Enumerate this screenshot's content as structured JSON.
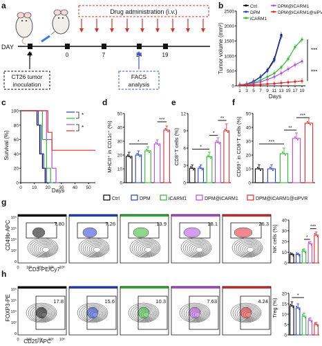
{
  "panel_letters": {
    "a": "a",
    "b": "b",
    "c": "c",
    "d": "d",
    "e": "e",
    "f": "f",
    "g": "g",
    "h": "h"
  },
  "colors": {
    "ctrl": "#000000",
    "dpm": "#1f3fd6",
    "icarm1": "#2db82d",
    "dpm_icarm1": "#b44be0",
    "dpm_icarm1_sipvr": "#e02a2a",
    "drug_box": "#d9302a",
    "facs_box": "#3e55d9"
  },
  "panel_a": {
    "drug_label": "Drug administration (i.v.)",
    "day_label": "DAY",
    "days": [
      "-7",
      "0",
      "7",
      "14",
      "19"
    ],
    "inoculation_label": [
      "CT26 tumor",
      "inoculation"
    ],
    "facs_label": [
      "FACS",
      "analysis"
    ]
  },
  "legend": [
    "Ctrl",
    "DPM",
    "iCARM1",
    "DPM@iCARM1",
    "DPM@iCARM1@siPVR"
  ],
  "chart_data": [
    {
      "panel": "b",
      "type": "line",
      "xlabel": "Days",
      "ylabel": "Tumor volume (mm³)",
      "x": [
        1,
        3,
        5,
        7,
        9,
        11,
        13,
        15,
        17,
        19
      ],
      "xticks": [
        "1",
        "3",
        "5",
        "7",
        "9",
        "11",
        "13",
        "15",
        "17",
        "19"
      ],
      "yticks": [
        "0",
        "500",
        "1000",
        "1500",
        "2000",
        "2500"
      ],
      "ylim": [
        0,
        2500
      ],
      "series": [
        {
          "name": "Ctrl",
          "values": [
            30,
            60,
            150,
            300,
            520,
            900,
            1700,
            null,
            null,
            null
          ]
        },
        {
          "name": "DPM",
          "values": [
            30,
            60,
            140,
            290,
            500,
            850,
            1650,
            null,
            null,
            null
          ]
        },
        {
          "name": "iCARM1",
          "values": [
            30,
            55,
            100,
            190,
            300,
            420,
            620,
            900,
            1300,
            1550
          ]
        },
        {
          "name": "DPM@iCARM1",
          "values": [
            25,
            45,
            80,
            130,
            210,
            300,
            420,
            560,
            700,
            820
          ]
        },
        {
          "name": "DPM@iCARM1@siPVR",
          "values": [
            20,
            25,
            35,
            45,
            60,
            75,
            95,
            120,
            140,
            160
          ]
        }
      ],
      "significance": [
        "***",
        "***"
      ]
    },
    {
      "panel": "c",
      "type": "line",
      "xlabel": "Days",
      "ylabel": "Survival (%)",
      "xticks": [
        "0",
        "10",
        "20",
        "30",
        "40",
        "50"
      ],
      "yticks": [
        "0",
        "20",
        "40",
        "60",
        "80",
        "100"
      ],
      "xlim": [
        0,
        55
      ],
      "ylim": [
        0,
        100
      ],
      "series": [
        {
          "name": "Ctrl",
          "steps": [
            [
              0,
              100
            ],
            [
              12,
              100
            ],
            [
              12,
              80
            ],
            [
              14,
              80
            ],
            [
              14,
              40
            ],
            [
              16,
              40
            ],
            [
              16,
              20
            ],
            [
              18,
              20
            ],
            [
              18,
              0
            ],
            [
              20,
              0
            ]
          ]
        },
        {
          "name": "DPM",
          "steps": [
            [
              0,
              100
            ],
            [
              13,
              100
            ],
            [
              13,
              80
            ],
            [
              15,
              80
            ],
            [
              15,
              40
            ],
            [
              17,
              40
            ],
            [
              17,
              20
            ],
            [
              19,
              20
            ],
            [
              19,
              0
            ],
            [
              21,
              0
            ]
          ]
        },
        {
          "name": "iCARM1",
          "steps": [
            [
              0,
              100
            ],
            [
              16,
              100
            ],
            [
              16,
              60
            ],
            [
              19,
              60
            ],
            [
              19,
              20
            ],
            [
              22,
              20
            ],
            [
              22,
              0
            ],
            [
              24,
              0
            ]
          ]
        },
        {
          "name": "DPM@iCARM1",
          "steps": [
            [
              0,
              100
            ],
            [
              19,
              100
            ],
            [
              19,
              60
            ],
            [
              23,
              60
            ],
            [
              23,
              20
            ],
            [
              26,
              20
            ],
            [
              26,
              0
            ],
            [
              28,
              0
            ]
          ]
        },
        {
          "name": "DPM@iCARM1@siPVR",
          "steps": [
            [
              0,
              100
            ],
            [
              20,
              100
            ],
            [
              20,
              70
            ],
            [
              23,
              70
            ],
            [
              23,
              45
            ],
            [
              55,
              45
            ]
          ]
        }
      ],
      "significance": [
        "*",
        "*"
      ]
    },
    {
      "panel": "d",
      "type": "bar",
      "ylabel": "MHCII⁺ in CD11c⁺ (%)",
      "yticks": [
        "0",
        "10",
        "20",
        "30",
        "40",
        "50"
      ],
      "ylim": [
        0,
        50
      ],
      "categories": [
        "Ctrl",
        "DPM",
        "iCARM1",
        "DPM@iCARM1",
        "DPM@iCARM1@siPVR"
      ],
      "values": [
        19,
        20,
        23,
        28,
        38
      ],
      "errors": [
        3,
        3,
        3,
        3,
        3
      ],
      "significance": [
        "*",
        "***"
      ]
    },
    {
      "panel": "e",
      "type": "bar",
      "ylabel": "CD8⁺T cells (%)",
      "yticks": [
        "0",
        "3",
        "6",
        "9",
        "12"
      ],
      "ylim": [
        0,
        12
      ],
      "categories": [
        "Ctrl",
        "DPM",
        "iCARM1",
        "DPM@iCARM1",
        "DPM@iCARM1@siPVR"
      ],
      "values": [
        2.5,
        2.5,
        4.5,
        7,
        9
      ],
      "errors": [
        0.6,
        0.6,
        0.8,
        0.8,
        1.2
      ],
      "significance": [
        "*",
        "*",
        "**"
      ]
    },
    {
      "panel": "f",
      "type": "bar",
      "ylabel": "CD69⁺ in CD8⁺T cells (%)",
      "yticks": [
        "0",
        "10",
        "20",
        "30",
        "40",
        "50"
      ],
      "ylim": [
        0,
        50
      ],
      "categories": [
        "Ctrl",
        "DPM",
        "iCARM1",
        "DPM@iCARM1",
        "DPM@iCARM1@siPVR"
      ],
      "values": [
        10,
        10,
        21,
        32,
        43
      ],
      "errors": [
        3,
        3,
        4,
        4,
        4
      ],
      "significance": [
        "***",
        "**",
        "***"
      ]
    },
    {
      "panel": "g",
      "type": "bar",
      "ylabel": "NK cells (%)",
      "yticks": [
        "0",
        "10",
        "20",
        "30",
        "40"
      ],
      "ylim": [
        0,
        40
      ],
      "categories": [
        "Ctrl",
        "DPM",
        "iCARM1",
        "DPM@iCARM1",
        "DPM@iCARM1@siPVR"
      ],
      "values": [
        8,
        8,
        11,
        18,
        26
      ],
      "errors": [
        1,
        1,
        2,
        2,
        3
      ],
      "significance": [
        "*",
        "***"
      ]
    },
    {
      "panel": "h",
      "type": "bar",
      "ylabel": "Treg (%)",
      "yticks": [
        "0",
        "5",
        "10",
        "15",
        "20"
      ],
      "ylim": [
        0,
        20
      ],
      "categories": [
        "Ctrl",
        "DPM",
        "iCARM1",
        "DPM@iCARM1",
        "DPM@iCARM1@siPVR"
      ],
      "values": [
        14,
        13,
        9,
        7,
        5
      ],
      "errors": [
        2,
        2,
        1.5,
        1.2,
        1
      ],
      "significance": [
        "*"
      ]
    }
  ],
  "flow_g": {
    "ylabel": "CD49b-APC",
    "xlabel": "CD3-PE/Cy7",
    "values": [
      "7.80",
      "7.26",
      "13.9",
      "18.1",
      "26.3"
    ]
  },
  "flow_h": {
    "ylabel": "FOXP3-PE",
    "xlabel": "CD25-APC",
    "values": [
      "17.8",
      "15.6",
      "10.3",
      "7.63",
      "4.24"
    ]
  },
  "flow_ticks": [
    "0",
    "10³",
    "10⁴",
    "10⁵",
    "10⁶"
  ]
}
